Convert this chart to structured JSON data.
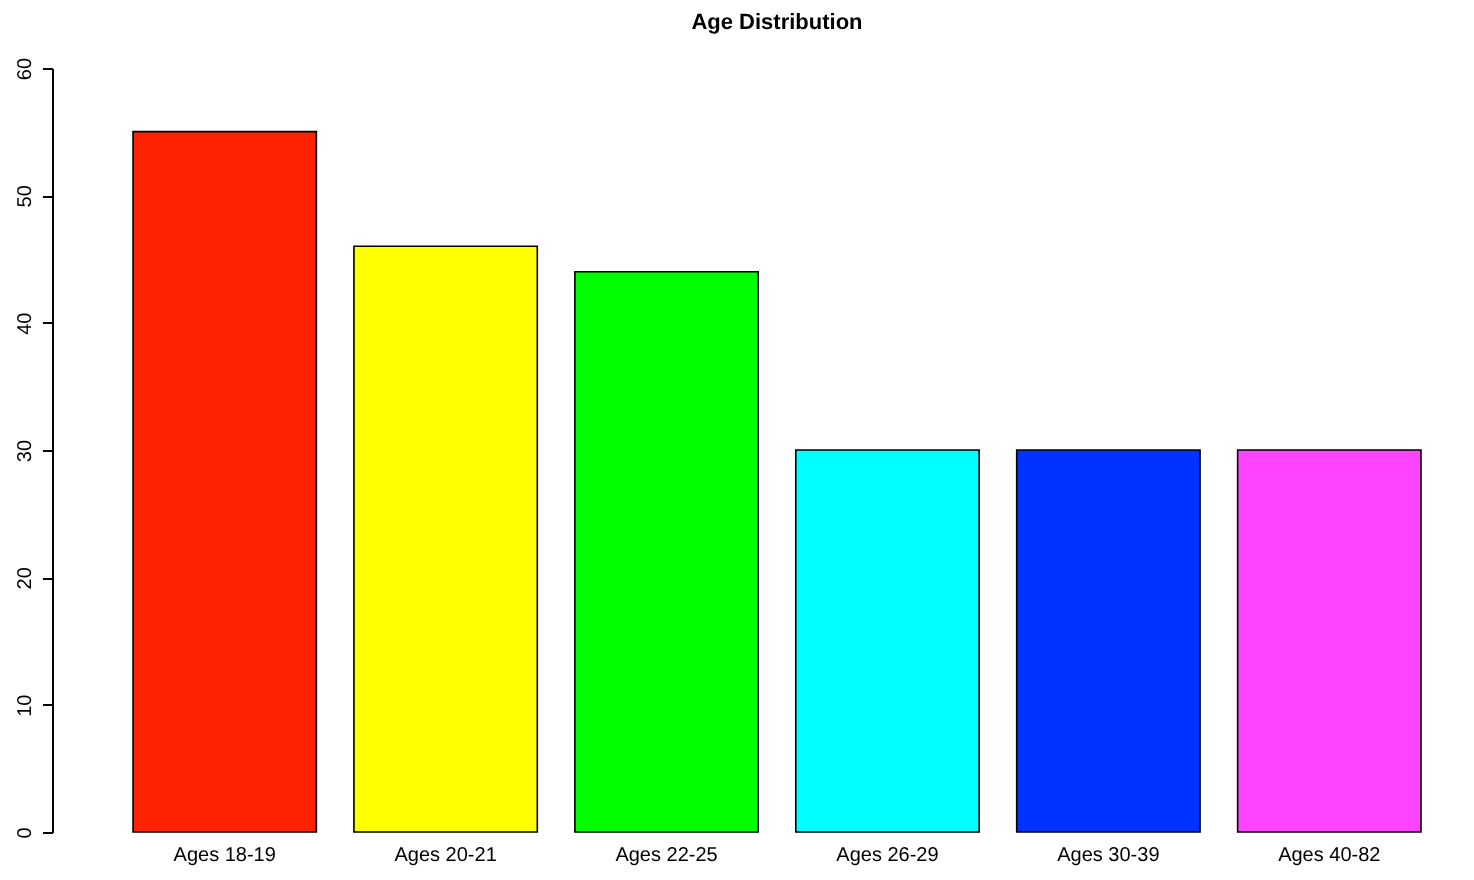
{
  "chart_data": {
    "type": "bar",
    "title": "Age Distribution",
    "categories": [
      "Ages 18-19",
      "Ages 20-21",
      "Ages 22-25",
      "Ages 26-29",
      "Ages 30-39",
      "Ages 40-82"
    ],
    "values": [
      55,
      46,
      44,
      30,
      30,
      30
    ],
    "colors": [
      "#ff2200",
      "#ffff00",
      "#00ff00",
      "#00ffff",
      "#0033ff",
      "#ff44ff"
    ],
    "ylim": [
      0,
      60
    ],
    "yticks": [
      0,
      10,
      20,
      30,
      40,
      50,
      60
    ]
  }
}
